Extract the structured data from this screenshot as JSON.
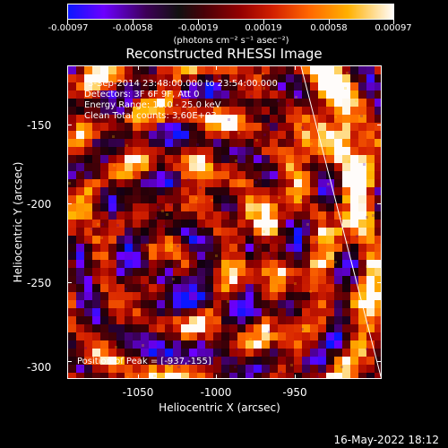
{
  "colorbar": {
    "ticks": [
      "-0.00097",
      "-0.00058",
      "-0.00019",
      "0.00019",
      "0.00058",
      "0.00097"
    ],
    "unit": "(photons cm⁻² s⁻¹ asec⁻²)"
  },
  "title": "Reconstructed RHESSI Image",
  "info": {
    "line1": "3-Sep-2014 23:48:00.000 to 23:54:00.000",
    "line2": "Detectors: 3F 6F 9F, Att 0",
    "line3": "Energy Range: 12.0 - 25.0 keV",
    "line4": "Clean    Total counts: 3.60E+03"
  },
  "peak": {
    "label": "Position of Peak = [-937,-155]"
  },
  "axes": {
    "y_ticks": [
      "-150",
      "-200",
      "-250",
      "-300"
    ],
    "x_ticks": [
      "-1050",
      "-1000",
      "-950"
    ],
    "ylabel": "Heliocentric Y (arcsec)",
    "xlabel": "Heliocentric X (arcsec)"
  },
  "footer": "16-May-2022 18:12",
  "colors": {
    "low": "#0b17ff",
    "mid": "#111111",
    "high": "#fffcfa"
  }
}
